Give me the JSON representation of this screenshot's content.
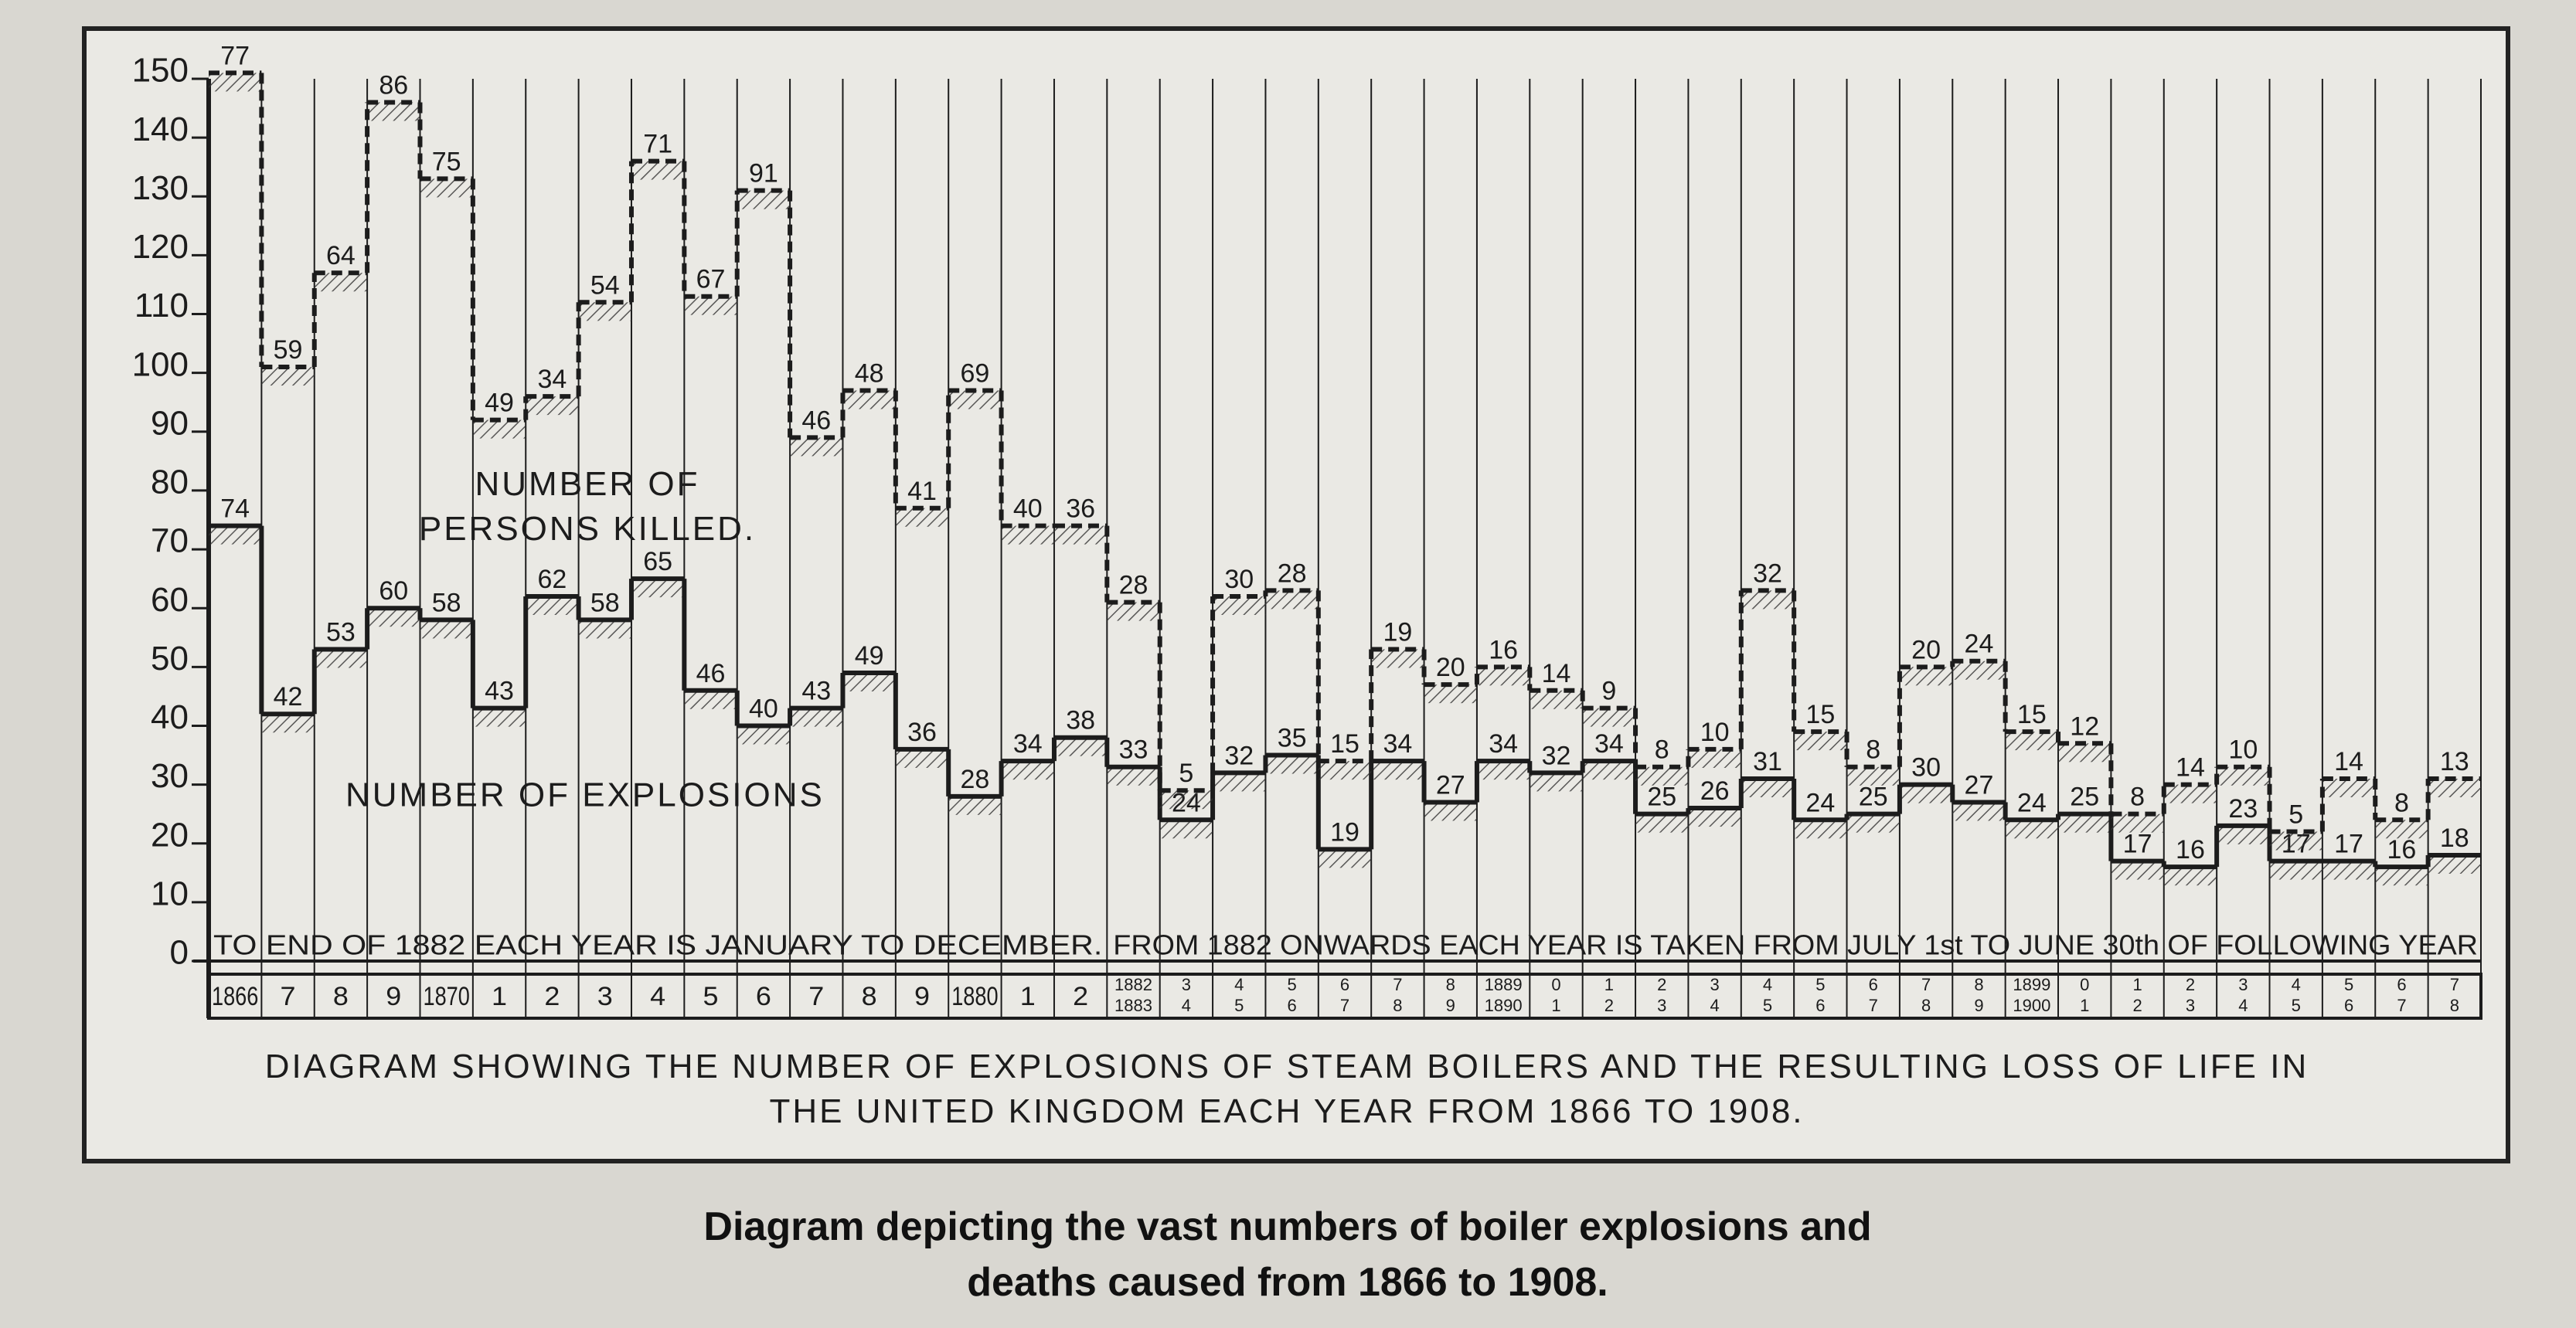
{
  "caption": "Diagram depicting the vast numbers of boiler explosions and deaths caused from 1866 to 1908.",
  "chart_data": {
    "type": "step",
    "title": "DIAGRAM SHOWING THE NUMBER OF EXPLOSIONS OF STEAM BOILERS AND THE RESULTING LOSS OF LIFE IN THE UNITED KINGDOM EACH YEAR FROM 1866 TO 1908.",
    "notes": [
      "TO END OF 1882 EACH YEAR IS JANUARY TO DECEMBER.",
      "FROM 1882 ONWARDS EACH YEAR IS TAKEN FROM JULY 1st TO JUNE 30th OF FOLLOWING YEAR"
    ],
    "categories": [
      "1866",
      "7",
      "8",
      "9",
      "1870",
      "1",
      "2",
      "3",
      "4",
      "5",
      "6",
      "7",
      "8",
      "9",
      "1880",
      "1",
      "2",
      "1882 1883",
      "3 4",
      "4 5",
      "5 6",
      "6 7",
      "7 8",
      "8 9",
      "1889 1890",
      "0 1",
      "1 2",
      "2 3",
      "3 4",
      "4 5",
      "5 6",
      "6 7",
      "7 8",
      "8 9",
      "1899 1900",
      "0 1",
      "1 2",
      "2 3",
      "3 4",
      "4 5",
      "5 6",
      "6 7",
      "7 8"
    ],
    "series": [
      {
        "name": "NUMBER OF EXPLOSIONS",
        "color": "#1c1c1c",
        "values": [
          74,
          42,
          53,
          60,
          58,
          43,
          62,
          58,
          65,
          46,
          40,
          43,
          49,
          36,
          28,
          34,
          38,
          33,
          24,
          32,
          35,
          19,
          34,
          27,
          34,
          32,
          34,
          25,
          26,
          31,
          24,
          25,
          30,
          27,
          24,
          25,
          17,
          16,
          23,
          17,
          17,
          16,
          18
        ]
      },
      {
        "name": "NUMBER OF PERSONS KILLED.",
        "color": "#1c1c1c",
        "stacked": true,
        "dashed": true,
        "values": [
          77,
          59,
          64,
          86,
          75,
          49,
          34,
          54,
          71,
          67,
          91,
          46,
          48,
          41,
          69,
          40,
          36,
          28,
          5,
          30,
          28,
          15,
          19,
          20,
          16,
          14,
          9,
          8,
          10,
          32,
          15,
          8,
          20,
          24,
          15,
          12,
          8,
          14,
          10,
          5,
          14,
          8,
          13
        ]
      }
    ],
    "ylim": [
      0,
      150
    ],
    "yticks": [
      0,
      10,
      20,
      30,
      40,
      50,
      60,
      70,
      80,
      90,
      100,
      110,
      120,
      130,
      140,
      150
    ]
  }
}
